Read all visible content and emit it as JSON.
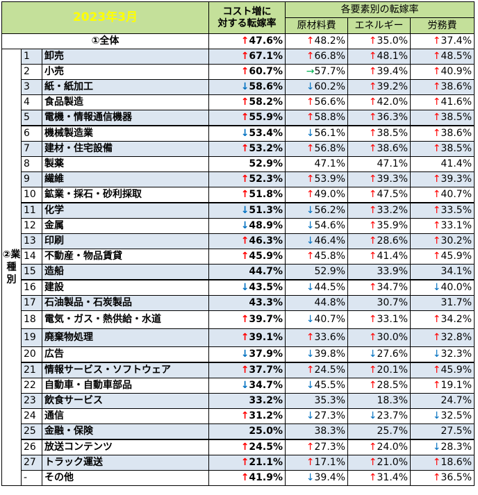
{
  "header": {
    "year_month": "2023年3月",
    "rate_label_1": "コスト増に",
    "rate_label_2": "対する転嫁率",
    "factor_group": "各要素別の転嫁率",
    "materials": "原材料費",
    "energy": "エネルギー",
    "labor": "労務費"
  },
  "total": {
    "label": "①全体",
    "rate": "47.6%",
    "rate_dir": "up",
    "materials": "48.2%",
    "materials_dir": "up",
    "energy": "35.0%",
    "energy_dir": "up",
    "labor": "37.4%",
    "labor_dir": "up"
  },
  "group_label": "②業種別",
  "rows": [
    {
      "no": "1",
      "name": "卸売",
      "rate": "67.1%",
      "rd": "up",
      "m": "66.8%",
      "md": "up",
      "e": "48.1%",
      "ed": "up",
      "l": "48.5%",
      "ld": "up",
      "shade": true
    },
    {
      "no": "2",
      "name": "小売",
      "rate": "60.7%",
      "rd": "up",
      "m": "57.7%",
      "md": "flat",
      "e": "39.4%",
      "ed": "up",
      "l": "40.9%",
      "ld": "up",
      "shade": false
    },
    {
      "no": "3",
      "name": "紙・紙加工",
      "rate": "58.6%",
      "rd": "down",
      "m": "60.2%",
      "md": "down",
      "e": "39.2%",
      "ed": "up",
      "l": "38.6%",
      "ld": "up",
      "shade": true
    },
    {
      "no": "4",
      "name": "食品製造",
      "rate": "58.2%",
      "rd": "up",
      "m": "56.6%",
      "md": "up",
      "e": "42.0%",
      "ed": "up",
      "l": "41.6%",
      "ld": "up",
      "shade": false
    },
    {
      "no": "5",
      "name": "電機・情報通信機器",
      "rate": "55.9%",
      "rd": "up",
      "m": "58.8%",
      "md": "up",
      "e": "36.3%",
      "ed": "up",
      "l": "38.5%",
      "ld": "up",
      "shade": true
    },
    {
      "no": "6",
      "name": "機械製造業",
      "rate": "53.4%",
      "rd": "down",
      "m": "56.1%",
      "md": "down",
      "e": "38.5%",
      "ed": "up",
      "l": "38.6%",
      "ld": "up",
      "shade": false
    },
    {
      "no": "7",
      "name": "建材・住宅設備",
      "rate": "53.2%",
      "rd": "up",
      "m": "56.8%",
      "md": "up",
      "e": "38.6%",
      "ed": "up",
      "l": "38.5%",
      "ld": "up",
      "shade": true
    },
    {
      "no": "8",
      "name": "製薬",
      "rate": "52.9%",
      "rd": "",
      "m": "47.1%",
      "md": "",
      "e": "47.1%",
      "ed": "",
      "l": "41.4%",
      "ld": "",
      "shade": false
    },
    {
      "no": "9",
      "name": "繊維",
      "rate": "52.3%",
      "rd": "up",
      "m": "53.9%",
      "md": "up",
      "e": "39.3%",
      "ed": "up",
      "l": "39.3%",
      "ld": "up",
      "shade": true
    },
    {
      "no": "10",
      "name": "鉱業・採石・砂利採取",
      "rate": "51.8%",
      "rd": "up",
      "m": "49.0%",
      "md": "up",
      "e": "47.5%",
      "ed": "up",
      "l": "40.7%",
      "ld": "up",
      "shade": false
    },
    {
      "no": "11",
      "name": "化学",
      "rate": "51.3%",
      "rd": "down",
      "m": "56.2%",
      "md": "down",
      "e": "33.2%",
      "ed": "up",
      "l": "33.5%",
      "ld": "up",
      "shade": true
    },
    {
      "no": "12",
      "name": "金属",
      "rate": "48.9%",
      "rd": "down",
      "m": "54.6%",
      "md": "down",
      "e": "35.9%",
      "ed": "up",
      "l": "33.1%",
      "ld": "up",
      "shade": false
    },
    {
      "no": "13",
      "name": "印刷",
      "rate": "46.3%",
      "rd": "up",
      "m": "46.4%",
      "md": "down",
      "e": "28.6%",
      "ed": "up",
      "l": "30.2%",
      "ld": "up",
      "shade": true
    },
    {
      "no": "14",
      "name": "不動産・物品賃貸",
      "rate": "45.9%",
      "rd": "up",
      "m": "45.8%",
      "md": "up",
      "e": "41.4%",
      "ed": "up",
      "l": "45.9%",
      "ld": "up",
      "shade": false
    },
    {
      "no": "15",
      "name": "造船",
      "rate": "44.7%",
      "rd": "",
      "m": "52.9%",
      "md": "",
      "e": "33.9%",
      "ed": "",
      "l": "34.1%",
      "ld": "",
      "shade": true
    },
    {
      "no": "16",
      "name": "建設",
      "rate": "43.5%",
      "rd": "down",
      "m": "44.5%",
      "md": "down",
      "e": "34.7%",
      "ed": "up",
      "l": "40.0%",
      "ld": "down",
      "shade": false
    },
    {
      "no": "17",
      "name": "石油製品・石炭製品",
      "rate": "43.3%",
      "rd": "",
      "m": "44.8%",
      "md": "",
      "e": "30.7%",
      "ed": "",
      "l": "31.7%",
      "ld": "",
      "shade": true
    },
    {
      "no": "18",
      "name": "電気・ガス・熱供給・水道",
      "rate": "39.7%",
      "rd": "up",
      "m": "40.7%",
      "md": "down",
      "e": "33.1%",
      "ed": "up",
      "l": "34.2%",
      "ld": "up",
      "shade": false
    },
    {
      "no": "19",
      "name": "廃棄物処理",
      "rate": "39.1%",
      "rd": "up",
      "m": "33.6%",
      "md": "up",
      "e": "30.0%",
      "ed": "up",
      "l": "32.8%",
      "ld": "up",
      "shade": true
    },
    {
      "no": "20",
      "name": "広告",
      "rate": "37.9%",
      "rd": "down",
      "m": "39.8%",
      "md": "down",
      "e": "27.6%",
      "ed": "down",
      "l": "32.3%",
      "ld": "down",
      "shade": false
    },
    {
      "no": "21",
      "name": "情報サービス・ソフトウェア",
      "rate": "37.7%",
      "rd": "up",
      "m": "24.5%",
      "md": "up",
      "e": "20.1%",
      "ed": "up",
      "l": "45.9%",
      "ld": "up",
      "shade": true
    },
    {
      "no": "22",
      "name": "自動車・自動車部品",
      "rate": "34.7%",
      "rd": "down",
      "m": "45.5%",
      "md": "down",
      "e": "28.5%",
      "ed": "up",
      "l": "19.1%",
      "ld": "up",
      "shade": false
    },
    {
      "no": "23",
      "name": "飲食サービス",
      "rate": "33.2%",
      "rd": "",
      "m": "35.3%",
      "md": "",
      "e": "18.3%",
      "ed": "",
      "l": "24.7%",
      "ld": "",
      "shade": true
    },
    {
      "no": "24",
      "name": "通信",
      "rate": "31.2%",
      "rd": "up",
      "m": "27.3%",
      "md": "down",
      "e": "23.7%",
      "ed": "down",
      "l": "32.5%",
      "ld": "down",
      "shade": false
    },
    {
      "no": "25",
      "name": "金融・保険",
      "rate": "25.0%",
      "rd": "",
      "m": "38.3%",
      "md": "",
      "e": "25.7%",
      "ed": "",
      "l": "27.5%",
      "ld": "",
      "shade": true
    },
    {
      "no": "26",
      "name": "放送コンテンツ",
      "rate": "24.5%",
      "rd": "up",
      "m": "27.3%",
      "md": "up",
      "e": "24.0%",
      "ed": "up",
      "l": "28.3%",
      "ld": "down",
      "shade": false
    },
    {
      "no": "27",
      "name": "トラック運送",
      "rate": "21.1%",
      "rd": "up",
      "m": "17.1%",
      "md": "up",
      "e": "21.0%",
      "ed": "up",
      "l": "18.6%",
      "ld": "up",
      "shade": true
    },
    {
      "no": "-",
      "name": "その他",
      "rate": "41.9%",
      "rd": "up",
      "m": "39.4%",
      "md": "down",
      "e": "31.4%",
      "ed": "up",
      "l": "36.5%",
      "ld": "up",
      "shade": false
    }
  ],
  "arrows": {
    "up": "↑",
    "down": "↓",
    "flat": "→"
  },
  "colors": {
    "header_bg": "#c4e09a",
    "title": "#ffff00",
    "shade": "#dce6f1",
    "up": "#ff0000",
    "down": "#0070c0",
    "flat": "#00b050"
  }
}
